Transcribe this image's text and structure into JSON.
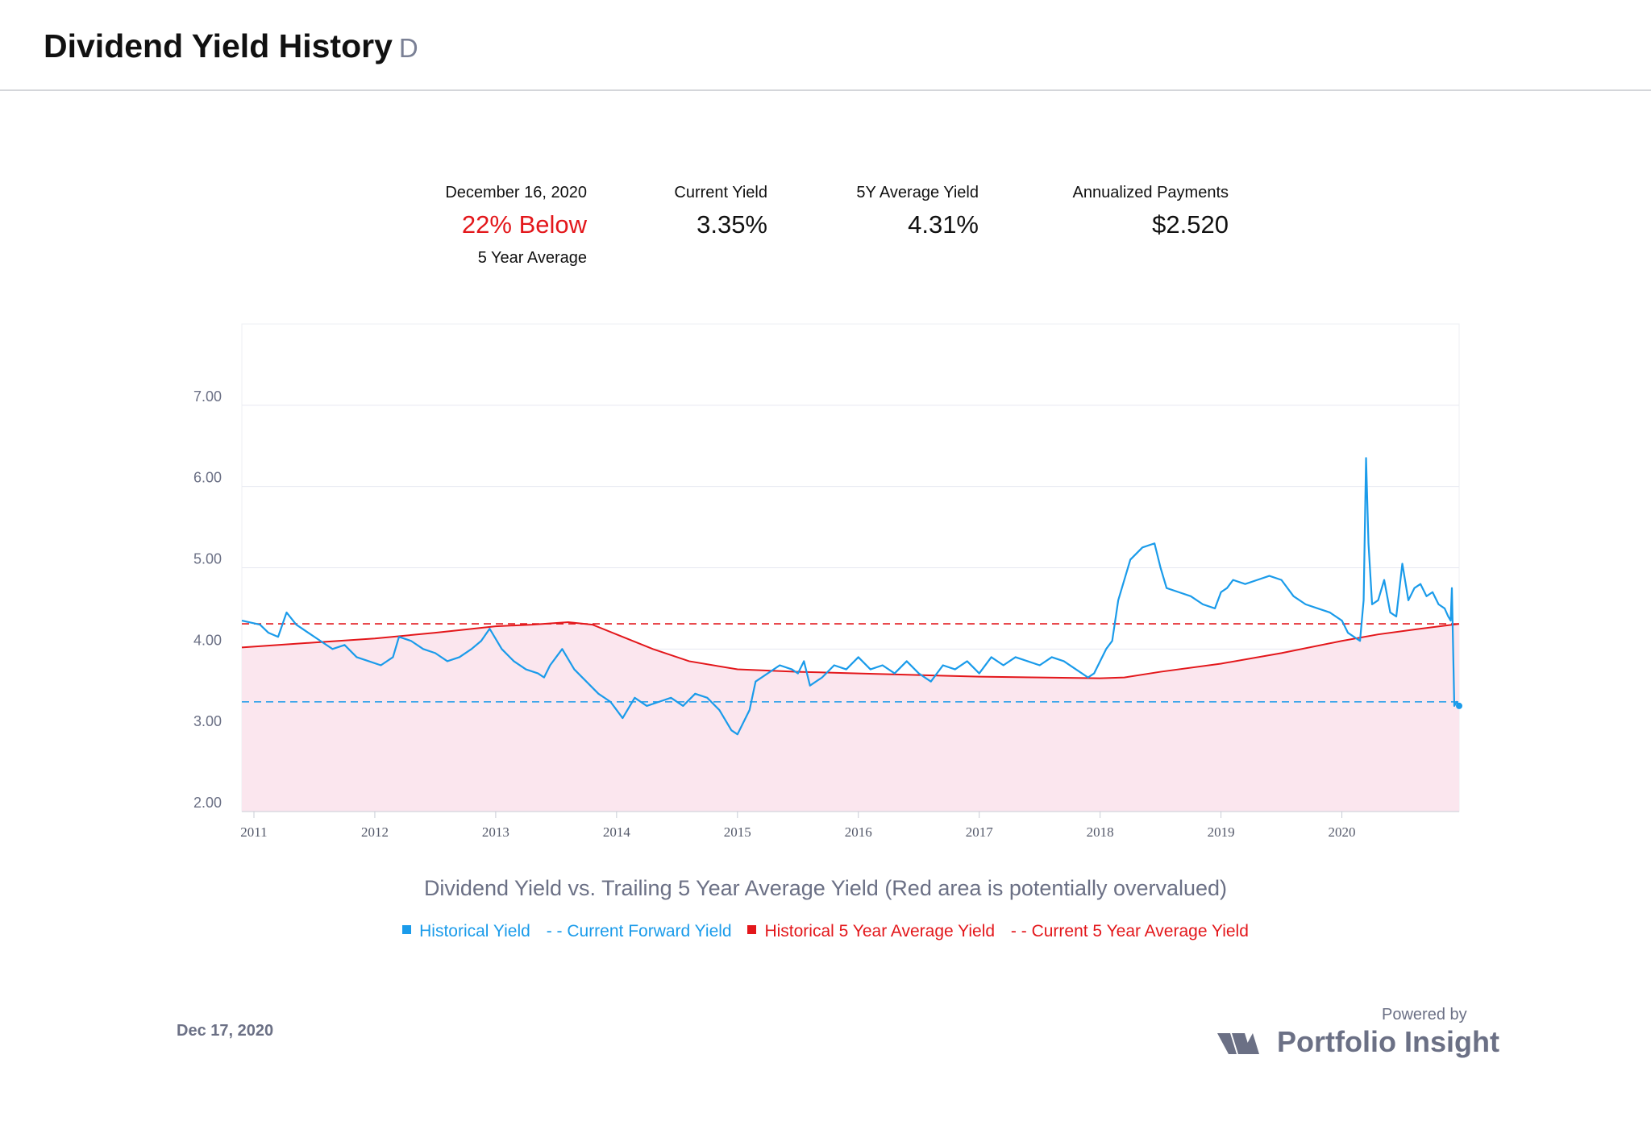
{
  "header": {
    "title": "Dividend Yield History",
    "ticker": "D"
  },
  "stats": {
    "date_label": "December 16, 2020",
    "valuation": "22% Below",
    "valuation_sub": "5 Year Average",
    "current_yield_label": "Current Yield",
    "current_yield": "3.35%",
    "avg_yield_label": "5Y Average Yield",
    "avg_yield": "4.31%",
    "payments_label": "Annualized Payments",
    "payments": "$2.520"
  },
  "colors": {
    "historical": "#1a9bea",
    "average": "#e3171b",
    "fill": "#fbe6ee"
  },
  "chart_data": {
    "type": "line",
    "title": "Dividend Yield vs. Trailing 5 Year Average Yield (Red area is potentially overvalued)",
    "xlabel": "",
    "ylabel": "",
    "xlim": [
      2010.9,
      2020.97
    ],
    "ylim": [
      2.0,
      8.0
    ],
    "yticks": [
      "2.00",
      "3.00",
      "4.00",
      "5.00",
      "6.00",
      "7.00"
    ],
    "xticks": [
      "2011",
      "2012",
      "2013",
      "2014",
      "2015",
      "2016",
      "2017",
      "2018",
      "2019",
      "2020"
    ],
    "current_forward_yield": 3.35,
    "current_5y_average_yield": 4.31,
    "series": [
      {
        "name": "Historical Yield",
        "x": [
          2010.9,
          2011.05,
          2011.12,
          2011.2,
          2011.27,
          2011.35,
          2011.45,
          2011.55,
          2011.65,
          2011.75,
          2011.85,
          2011.95,
          2012.05,
          2012.15,
          2012.2,
          2012.3,
          2012.4,
          2012.5,
          2012.6,
          2012.7,
          2012.8,
          2012.88,
          2012.95,
          2013.05,
          2013.15,
          2013.25,
          2013.35,
          2013.4,
          2013.45,
          2013.55,
          2013.65,
          2013.75,
          2013.85,
          2013.95,
          2014.05,
          2014.15,
          2014.25,
          2014.35,
          2014.45,
          2014.55,
          2014.65,
          2014.75,
          2014.85,
          2014.95,
          2015.0,
          2015.1,
          2015.15,
          2015.25,
          2015.35,
          2015.45,
          2015.5,
          2015.55,
          2015.6,
          2015.7,
          2015.8,
          2015.9,
          2016.0,
          2016.1,
          2016.2,
          2016.3,
          2016.4,
          2016.5,
          2016.6,
          2016.7,
          2016.8,
          2016.9,
          2017.0,
          2017.1,
          2017.2,
          2017.3,
          2017.4,
          2017.5,
          2017.6,
          2017.7,
          2017.8,
          2017.9,
          2017.95,
          2018.0,
          2018.05,
          2018.1,
          2018.15,
          2018.25,
          2018.35,
          2018.45,
          2018.5,
          2018.55,
          2018.65,
          2018.75,
          2018.85,
          2018.95,
          2019.0,
          2019.05,
          2019.1,
          2019.2,
          2019.3,
          2019.4,
          2019.5,
          2019.6,
          2019.7,
          2019.8,
          2019.9,
          2020.0,
          2020.05,
          2020.1,
          2020.15,
          2020.18,
          2020.2,
          2020.22,
          2020.25,
          2020.3,
          2020.35,
          2020.4,
          2020.45,
          2020.5,
          2020.55,
          2020.6,
          2020.65,
          2020.7,
          2020.75,
          2020.8,
          2020.85,
          2020.88,
          2020.9,
          2020.91,
          2020.93,
          2020.95,
          2020.97
        ],
        "values": [
          4.35,
          4.3,
          4.2,
          4.15,
          4.45,
          4.3,
          4.2,
          4.1,
          4.0,
          4.05,
          3.9,
          3.85,
          3.8,
          3.9,
          4.15,
          4.1,
          4.0,
          3.95,
          3.85,
          3.9,
          4.0,
          4.1,
          4.25,
          4.0,
          3.85,
          3.75,
          3.7,
          3.65,
          3.8,
          4.0,
          3.75,
          3.6,
          3.45,
          3.35,
          3.15,
          3.4,
          3.3,
          3.35,
          3.4,
          3.3,
          3.45,
          3.4,
          3.25,
          3.0,
          2.95,
          3.25,
          3.6,
          3.7,
          3.8,
          3.75,
          3.7,
          3.85,
          3.55,
          3.65,
          3.8,
          3.75,
          3.9,
          3.75,
          3.8,
          3.7,
          3.85,
          3.7,
          3.6,
          3.8,
          3.75,
          3.85,
          3.7,
          3.9,
          3.8,
          3.9,
          3.85,
          3.8,
          3.9,
          3.85,
          3.75,
          3.65,
          3.7,
          3.85,
          4.0,
          4.1,
          4.6,
          5.1,
          5.25,
          5.3,
          5.0,
          4.75,
          4.7,
          4.65,
          4.55,
          4.5,
          4.7,
          4.75,
          4.85,
          4.8,
          4.85,
          4.9,
          4.85,
          4.65,
          4.55,
          4.5,
          4.45,
          4.35,
          4.2,
          4.15,
          4.1,
          4.6,
          6.35,
          5.3,
          4.55,
          4.6,
          4.85,
          4.45,
          4.4,
          5.05,
          4.6,
          4.75,
          4.8,
          4.65,
          4.7,
          4.55,
          4.5,
          4.4,
          4.35,
          4.75,
          3.3,
          3.35,
          3.3
        ]
      },
      {
        "name": "Historical 5 Year Average Yield",
        "x": [
          2010.9,
          2011.5,
          2012.0,
          2012.5,
          2013.0,
          2013.3,
          2013.6,
          2013.8,
          2014.0,
          2014.3,
          2014.6,
          2015.0,
          2015.5,
          2016.0,
          2016.5,
          2017.0,
          2017.5,
          2018.0,
          2018.2,
          2018.5,
          2019.0,
          2019.5,
          2020.0,
          2020.3,
          2020.6,
          2020.97
        ],
        "values": [
          4.02,
          4.08,
          4.13,
          4.2,
          4.28,
          4.3,
          4.33,
          4.3,
          4.18,
          4.0,
          3.85,
          3.75,
          3.72,
          3.7,
          3.68,
          3.66,
          3.65,
          3.64,
          3.65,
          3.72,
          3.82,
          3.95,
          4.1,
          4.18,
          4.24,
          4.31
        ]
      },
      {
        "name": "Current Forward Yield",
        "style": "dashed",
        "value": 3.35
      },
      {
        "name": "Current 5 Year Average Yield",
        "style": "dashed",
        "value": 4.31
      }
    ],
    "legend": [
      "Historical Yield",
      "- - Current Forward Yield",
      "Historical 5 Year Average Yield",
      "- - Current 5 Year Average Yield"
    ]
  },
  "footer": {
    "date": "Dec 17, 2020",
    "powered_by": "Powered by",
    "brand": "Portfolio Insight"
  }
}
